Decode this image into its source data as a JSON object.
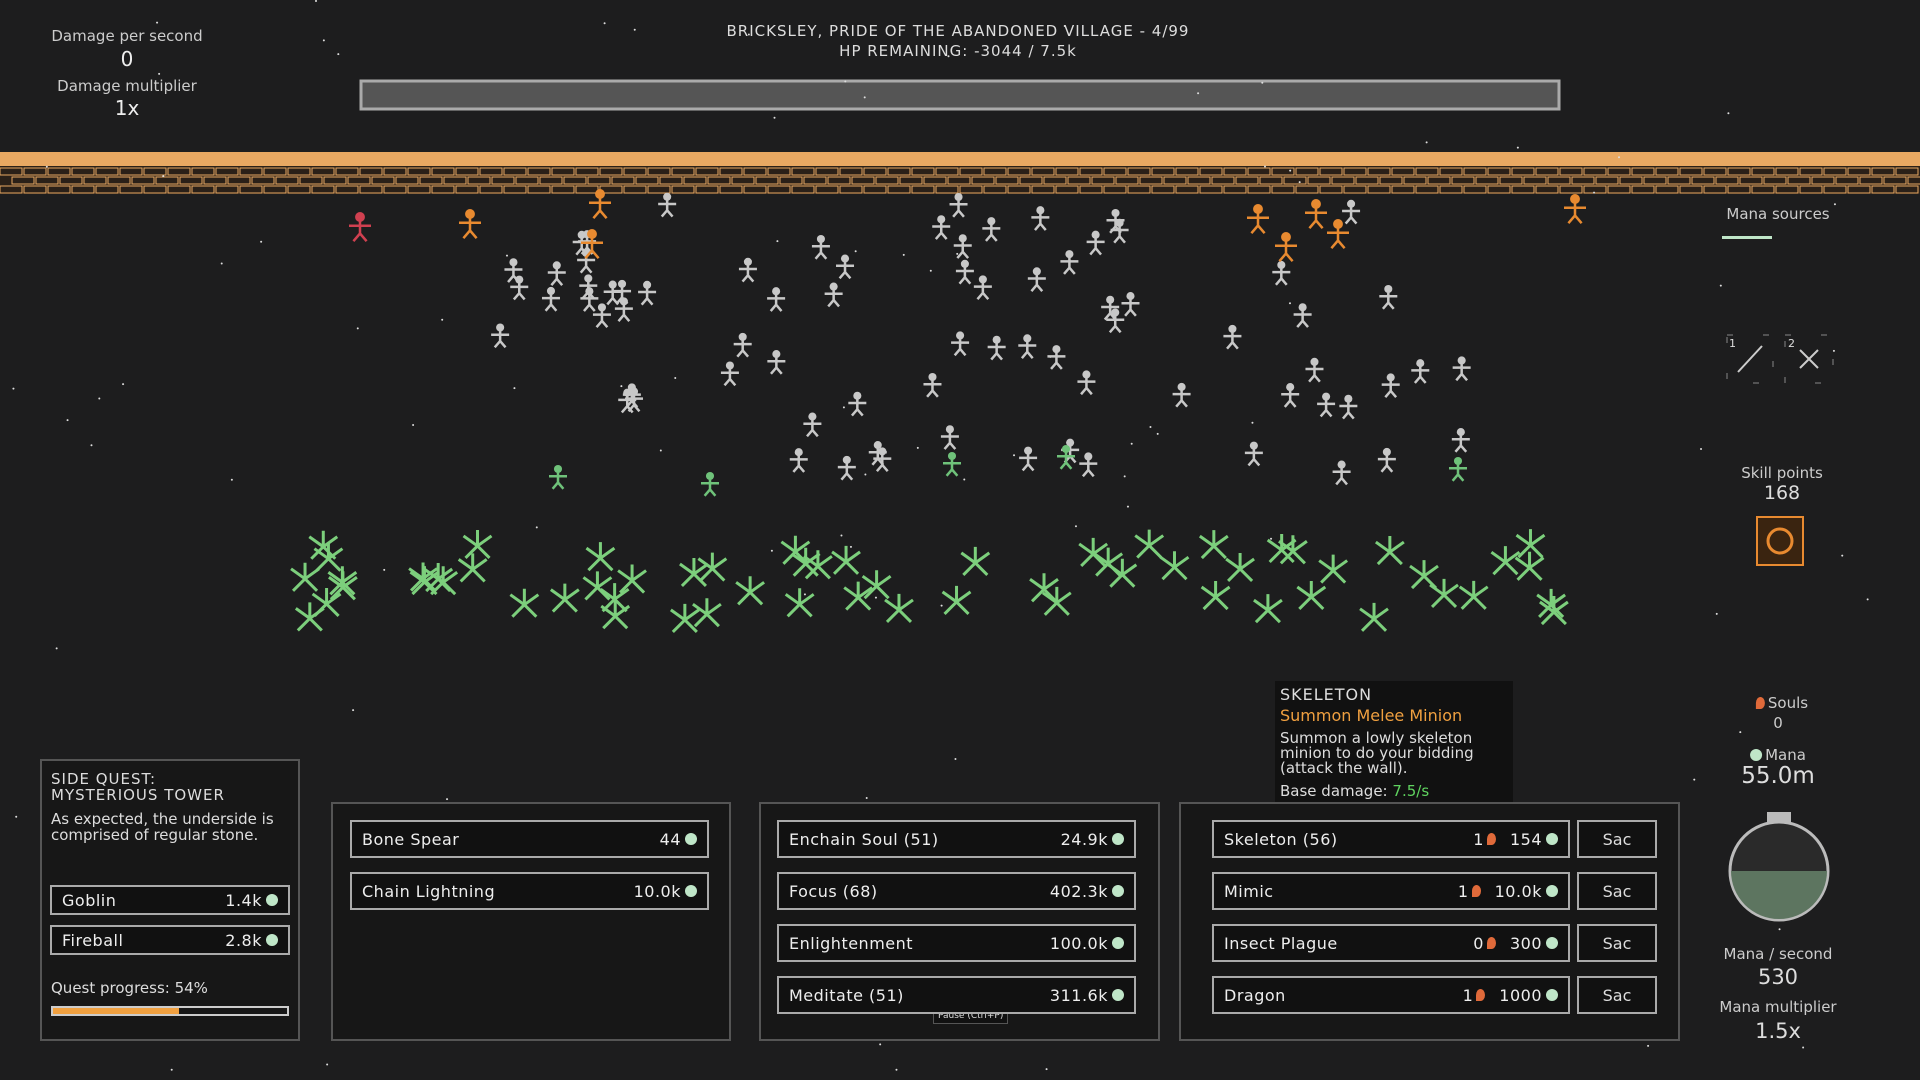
{
  "stats": {
    "dps_label": "Damage per second",
    "dps": "0",
    "multiplier_label": "Damage multiplier",
    "multiplier": "1x"
  },
  "boss": {
    "name": "BRICKSLEY, PRIDE OF THE ABANDONED VILLAGE - 4/99",
    "hp": "HP REMAINING: -3044 / 7.5k"
  },
  "mana_sources": "Mana sources",
  "skill_slots": [
    "1",
    "2"
  ],
  "skill_points": {
    "label": "Skill points",
    "value": "168"
  },
  "tooltip": {
    "title": "SKELETON",
    "subtitle": "Summon Melee Minion",
    "text": "Summon a lowly skeleton minion to do your bidding (attack the wall).",
    "damage_label": "Base damage:",
    "damage": "7.5/s"
  },
  "resources": {
    "souls_label": "Souls",
    "souls": "0",
    "mana_label": "Mana",
    "mana": "55.0m",
    "mana_rate_label": "Mana / second",
    "mana_rate": "530",
    "mana_mult_label": "Mana multiplier",
    "mana_mult": "1.5x"
  },
  "side_quest": {
    "title": "SIDE QUEST: MYSTERIOUS TOWER",
    "text": "As expected, the underside is comprised of regular stone.",
    "items": [
      {
        "name": "Goblin",
        "cost": "1.4k"
      },
      {
        "name": "Fireball",
        "cost": "2.8k"
      }
    ],
    "progress_label": "Quest progress: 54%",
    "progress": 54
  },
  "spells": [
    {
      "name": "Bone Spear",
      "cost": "44"
    },
    {
      "name": "Chain Lightning",
      "cost": "10.0k"
    }
  ],
  "upgrades": [
    {
      "name": "Enchain Soul (51)",
      "cost": "24.9k"
    },
    {
      "name": "Focus (68)",
      "cost": "402.3k"
    },
    {
      "name": "Enlightenment",
      "cost": "100.0k"
    },
    {
      "name": "Meditate (51)",
      "cost": "311.6k"
    }
  ],
  "minions": [
    {
      "name": "Skeleton (56)",
      "souls": "1",
      "cost": "154",
      "action": "Sac"
    },
    {
      "name": "Mimic",
      "souls": "1",
      "cost": "10.0k",
      "action": "Sac"
    },
    {
      "name": "Insect Plague",
      "souls": "0",
      "cost": "300",
      "action": "Sac"
    },
    {
      "name": "Dragon",
      "souls": "1",
      "cost": "1000",
      "action": "Sac"
    }
  ],
  "pause_hint": "Pause (Ctrl+P)"
}
